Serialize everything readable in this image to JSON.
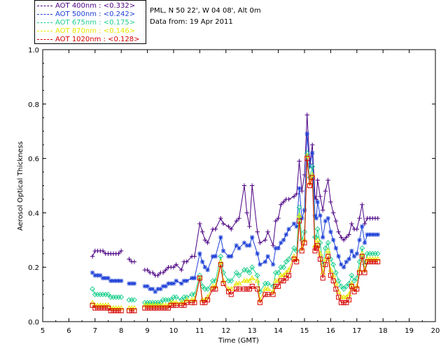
{
  "legend": [
    {
      "label": "AOT  400nm : <0.332>",
      "color": "#4b0082"
    },
    {
      "label": "AOT  500nm : <0.242>",
      "color": "#1c3fd6"
    },
    {
      "label": "AOT  675nm : <0.175>",
      "color": "#1fcf8f"
    },
    {
      "label": "AOT  870nm : <0.146>",
      "color": "#e6e600"
    },
    {
      "label": "AOT 1020nm : <0.128>",
      "color": "#d40000"
    }
  ],
  "info": {
    "site": "PML, N 50 22', W 04 08', Alt 0m",
    "date": "Data from: 19 Apr 2011"
  },
  "chart_data": {
    "type": "line",
    "xlabel": "Time (GMT)",
    "ylabel": "Aerosol Optical Thickness",
    "xlim": [
      5,
      20
    ],
    "ylim": [
      0.0,
      1.0
    ],
    "xticks": [
      "5",
      "6",
      "7",
      "8",
      "9",
      "10",
      "11",
      "12",
      "13",
      "14",
      "15",
      "16",
      "17",
      "18",
      "19",
      "20"
    ],
    "yticks": [
      "0.0",
      "0.2",
      "0.4",
      "0.6",
      "0.8",
      "1.0"
    ],
    "x": [
      6.9,
      7.0,
      7.1,
      7.2,
      7.3,
      7.4,
      7.5,
      7.6,
      7.7,
      7.8,
      7.9,
      8.0,
      8.3,
      8.4,
      8.5,
      8.9,
      9.0,
      9.1,
      9.2,
      9.3,
      9.4,
      9.5,
      9.6,
      9.7,
      9.8,
      9.9,
      10.0,
      10.1,
      10.3,
      10.4,
      10.5,
      10.7,
      10.8,
      11.0,
      11.1,
      11.2,
      11.3,
      11.5,
      11.6,
      11.8,
      11.9,
      12.1,
      12.2,
      12.4,
      12.5,
      12.7,
      12.8,
      12.9,
      13.0,
      13.2,
      13.3,
      13.5,
      13.6,
      13.8,
      13.9,
      14.0,
      14.1,
      14.2,
      14.3,
      14.4,
      14.6,
      14.7,
      14.8,
      14.9,
      15.0,
      15.1,
      15.2,
      15.3,
      15.4,
      15.45,
      15.5,
      15.6,
      15.7,
      15.8,
      15.9,
      16.0,
      16.1,
      16.2,
      16.3,
      16.4,
      16.5,
      16.6,
      16.7,
      16.8,
      16.9,
      17.0,
      17.1,
      17.2,
      17.3,
      17.4,
      17.5,
      17.6,
      17.7,
      17.8
    ],
    "series": [
      {
        "name": "AOT  400nm : <0.332>",
        "marker": "plus",
        "values": [
          0.24,
          0.26,
          0.26,
          0.26,
          0.26,
          0.25,
          0.25,
          0.25,
          0.25,
          0.25,
          0.25,
          0.26,
          0.23,
          0.22,
          0.22,
          0.19,
          0.19,
          0.18,
          0.18,
          0.17,
          0.17,
          0.18,
          0.18,
          0.19,
          0.2,
          0.2,
          0.2,
          0.21,
          0.19,
          0.22,
          0.22,
          0.24,
          0.24,
          0.36,
          0.33,
          0.3,
          0.29,
          0.34,
          0.34,
          0.38,
          0.36,
          0.35,
          0.34,
          0.37,
          0.38,
          0.5,
          0.4,
          0.35,
          0.5,
          0.33,
          0.29,
          0.3,
          0.33,
          0.28,
          0.37,
          0.38,
          0.43,
          0.44,
          0.45,
          0.45,
          0.46,
          0.47,
          0.59,
          0.48,
          0.54,
          0.76,
          0.58,
          0.65,
          0.46,
          0.45,
          0.52,
          0.46,
          0.41,
          0.48,
          0.52,
          0.44,
          0.4,
          0.37,
          0.33,
          0.31,
          0.3,
          0.31,
          0.32,
          0.36,
          0.34,
          0.34,
          0.38,
          0.43,
          0.36,
          0.38,
          0.38,
          0.38,
          0.38,
          0.38
        ]
      },
      {
        "name": "AOT  500nm : <0.242>",
        "marker": "asterisk",
        "values": [
          0.18,
          0.17,
          0.17,
          0.17,
          0.16,
          0.16,
          0.16,
          0.15,
          0.15,
          0.15,
          0.15,
          0.15,
          0.14,
          0.14,
          0.14,
          0.13,
          0.13,
          0.12,
          0.12,
          0.11,
          0.12,
          0.12,
          0.13,
          0.13,
          0.14,
          0.14,
          0.14,
          0.15,
          0.14,
          0.15,
          0.15,
          0.16,
          0.16,
          0.25,
          0.22,
          0.2,
          0.19,
          0.24,
          0.24,
          0.31,
          0.26,
          0.24,
          0.24,
          0.28,
          0.27,
          0.29,
          0.28,
          0.28,
          0.31,
          0.25,
          0.21,
          0.22,
          0.24,
          0.21,
          0.27,
          0.27,
          0.29,
          0.3,
          0.32,
          0.34,
          0.36,
          0.35,
          0.49,
          0.38,
          0.41,
          0.69,
          0.57,
          0.62,
          0.39,
          0.38,
          0.44,
          0.39,
          0.31,
          0.37,
          0.38,
          0.33,
          0.3,
          0.27,
          0.24,
          0.21,
          0.2,
          0.22,
          0.23,
          0.26,
          0.24,
          0.25,
          0.3,
          0.35,
          0.29,
          0.32,
          0.32,
          0.32,
          0.32,
          0.32
        ]
      },
      {
        "name": "AOT  675nm : <0.175>",
        "marker": "diamond",
        "values": [
          0.12,
          0.1,
          0.1,
          0.1,
          0.1,
          0.1,
          0.1,
          0.09,
          0.09,
          0.09,
          0.09,
          0.09,
          0.08,
          0.08,
          0.08,
          0.07,
          0.07,
          0.07,
          0.07,
          0.07,
          0.07,
          0.07,
          0.08,
          0.08,
          0.08,
          0.08,
          0.09,
          0.09,
          0.08,
          0.09,
          0.09,
          0.1,
          0.1,
          0.17,
          0.13,
          0.12,
          0.12,
          0.15,
          0.15,
          0.24,
          0.18,
          0.15,
          0.15,
          0.18,
          0.17,
          0.19,
          0.19,
          0.18,
          0.2,
          0.17,
          0.11,
          0.14,
          0.14,
          0.13,
          0.18,
          0.18,
          0.2,
          0.2,
          0.22,
          0.23,
          0.27,
          0.26,
          0.42,
          0.3,
          0.33,
          0.62,
          0.53,
          0.57,
          0.31,
          0.31,
          0.34,
          0.29,
          0.21,
          0.27,
          0.29,
          0.23,
          0.21,
          0.18,
          0.15,
          0.13,
          0.12,
          0.13,
          0.14,
          0.17,
          0.15,
          0.16,
          0.22,
          0.27,
          0.21,
          0.25,
          0.25,
          0.25,
          0.25,
          0.25
        ]
      },
      {
        "name": "AOT  870nm : <0.146>",
        "marker": "triangle",
        "values": [
          0.07,
          0.06,
          0.06,
          0.06,
          0.06,
          0.06,
          0.06,
          0.05,
          0.05,
          0.05,
          0.05,
          0.05,
          0.05,
          0.05,
          0.05,
          0.06,
          0.06,
          0.06,
          0.06,
          0.06,
          0.06,
          0.06,
          0.06,
          0.06,
          0.06,
          0.07,
          0.07,
          0.07,
          0.07,
          0.07,
          0.08,
          0.08,
          0.08,
          0.16,
          0.08,
          0.08,
          0.09,
          0.13,
          0.13,
          0.22,
          0.15,
          0.12,
          0.12,
          0.14,
          0.14,
          0.15,
          0.15,
          0.15,
          0.16,
          0.15,
          0.08,
          0.12,
          0.12,
          0.11,
          0.15,
          0.15,
          0.17,
          0.17,
          0.18,
          0.19,
          0.24,
          0.23,
          0.39,
          0.27,
          0.3,
          0.61,
          0.51,
          0.54,
          0.28,
          0.28,
          0.3,
          0.25,
          0.18,
          0.23,
          0.26,
          0.19,
          0.17,
          0.14,
          0.11,
          0.09,
          0.09,
          0.09,
          0.1,
          0.14,
          0.12,
          0.13,
          0.19,
          0.25,
          0.19,
          0.23,
          0.23,
          0.23,
          0.23,
          0.23
        ]
      },
      {
        "name": "AOT 1020nm : <0.128>",
        "marker": "square",
        "values": [
          0.06,
          0.05,
          0.05,
          0.05,
          0.05,
          0.05,
          0.05,
          0.04,
          0.04,
          0.04,
          0.04,
          0.04,
          0.04,
          0.04,
          0.04,
          0.05,
          0.05,
          0.05,
          0.05,
          0.05,
          0.05,
          0.05,
          0.05,
          0.05,
          0.05,
          0.06,
          0.06,
          0.06,
          0.06,
          0.06,
          0.07,
          0.07,
          0.07,
          0.16,
          0.07,
          0.07,
          0.08,
          0.12,
          0.12,
          0.21,
          0.14,
          0.11,
          0.1,
          0.12,
          0.12,
          0.12,
          0.12,
          0.12,
          0.13,
          0.12,
          0.07,
          0.1,
          0.1,
          0.1,
          0.13,
          0.13,
          0.15,
          0.15,
          0.16,
          0.17,
          0.23,
          0.22,
          0.37,
          0.26,
          0.29,
          0.6,
          0.5,
          0.53,
          0.26,
          0.27,
          0.28,
          0.23,
          0.16,
          0.21,
          0.24,
          0.17,
          0.15,
          0.12,
          0.09,
          0.07,
          0.07,
          0.07,
          0.08,
          0.13,
          0.11,
          0.12,
          0.18,
          0.24,
          0.18,
          0.22,
          0.22,
          0.22,
          0.22,
          0.22
        ]
      }
    ]
  }
}
